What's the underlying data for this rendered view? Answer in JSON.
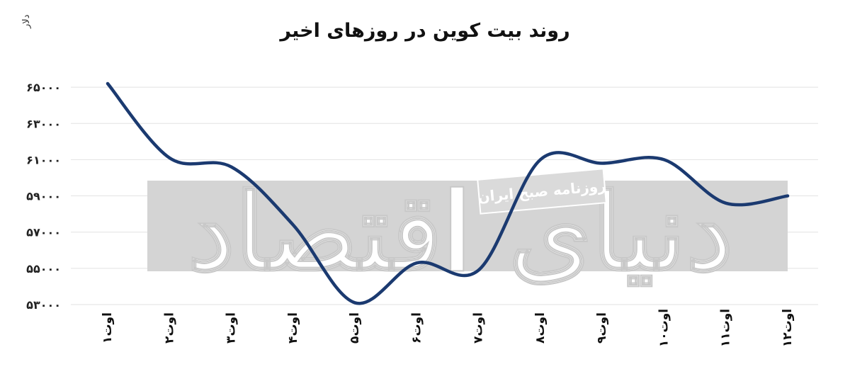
{
  "chart_data": {
    "type": "line",
    "title": "روند بیت کوین در روزهای اخیر",
    "ylabel": "دلار",
    "xlabel": "",
    "categories": [
      "۱اوت",
      "۲اوت",
      "۳اوت",
      "۴اوت",
      "۵اوت",
      "۶اوت",
      "۷اوت",
      "۸اوت",
      "۹اوت",
      "۱۰اوت",
      "۱۱اوت",
      "۱۲اوت"
    ],
    "y_tick_values": [
      53000,
      55000,
      57000,
      59000,
      61000,
      63000,
      65000
    ],
    "y_tick_labels": [
      "۵۳۰۰۰",
      "۵۵۰۰۰",
      "۵۷۰۰۰",
      "۵۹۰۰۰",
      "۶۱۰۰۰",
      "۶۳۰۰۰",
      "۶۵۰۰۰"
    ],
    "ylim": [
      53000,
      65200
    ],
    "grid": true,
    "series": [
      {
        "values": [
          65200,
          61100,
          60600,
          57400,
          53100,
          55300,
          54900,
          61000,
          60800,
          61000,
          58600,
          59000
        ]
      }
    ],
    "line_color": "#1b3a70",
    "watermark": {
      "text": "دنیای اقتصاد",
      "subtitle": "روزنامه صبح ایران"
    }
  }
}
